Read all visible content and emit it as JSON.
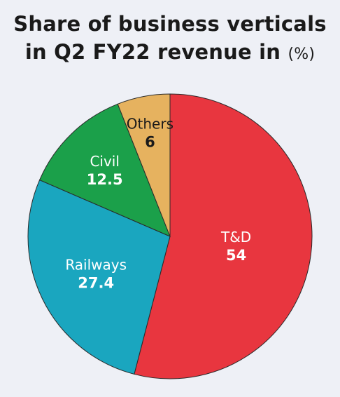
{
  "chart_data": {
    "type": "pie",
    "title_line1": "Share of business verticals",
    "title_line2": "in Q2 FY22 revenue in",
    "title_unit": "(%)",
    "slices": [
      {
        "label": "T&D",
        "value": 54,
        "value_text": "54",
        "color": "#e8363f",
        "label_color": "#ffffff"
      },
      {
        "label": "Railways",
        "value": 27.4,
        "value_text": "27.4",
        "color": "#1aa6bf",
        "label_color": "#ffffff"
      },
      {
        "label": "Civil",
        "value": 12.5,
        "value_text": "12.5",
        "color": "#1ba04a",
        "label_color": "#ffffff"
      },
      {
        "label": "Others",
        "value": 6,
        "value_text": "6",
        "color": "#e6b25f",
        "label_color": "#1a1a1a"
      }
    ]
  }
}
